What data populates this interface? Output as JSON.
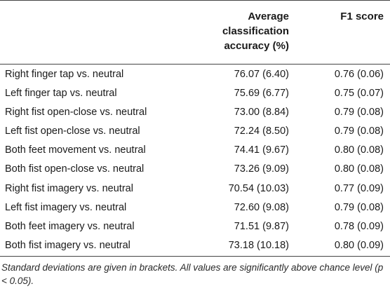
{
  "table": {
    "headers": {
      "label": "",
      "accuracy": "Average classification accuracy (%)",
      "accuracy_lines": [
        "Average",
        "classification",
        "accuracy (%)"
      ],
      "f1": "F1 score"
    },
    "rows": [
      {
        "label": "Right finger tap vs. neutral",
        "accuracy": "76.07 (6.40)",
        "f1": "0.76 (0.06)"
      },
      {
        "label": "Left finger tap vs. neutral",
        "accuracy": "75.69 (6.77)",
        "f1": "0.75 (0.07)"
      },
      {
        "label": "Right fist open-close vs. neutral",
        "accuracy": "73.00 (8.84)",
        "f1": "0.79 (0.08)"
      },
      {
        "label": "Left fist open-close vs. neutral",
        "accuracy": "72.24 (8.50)",
        "f1": "0.79 (0.08)"
      },
      {
        "label": "Both feet movement vs. neutral",
        "accuracy": "74.41 (9.67)",
        "f1": "0.80 (0.08)"
      },
      {
        "label": "Both fist open-close vs. neutral",
        "accuracy": "73.26 (9.09)",
        "f1": "0.80 (0.08)"
      },
      {
        "label": "Right fist imagery vs. neutral",
        "accuracy": "70.54 (10.03)",
        "f1": "0.77 (0.09)"
      },
      {
        "label": "Left fist imagery vs. neutral",
        "accuracy": "72.60 (9.08)",
        "f1": "0.79 (0.08)"
      },
      {
        "label": "Both feet imagery vs. neutral",
        "accuracy": "71.51 (9.87)",
        "f1": "0.78 (0.09)"
      },
      {
        "label": "Both fist imagery vs. neutral",
        "accuracy": "73.18 (10.18)",
        "f1": "0.80 (0.09)"
      }
    ],
    "footnote": "Standard deviations are given in brackets. All values are significantly above chance level (p < 0.05)."
  }
}
